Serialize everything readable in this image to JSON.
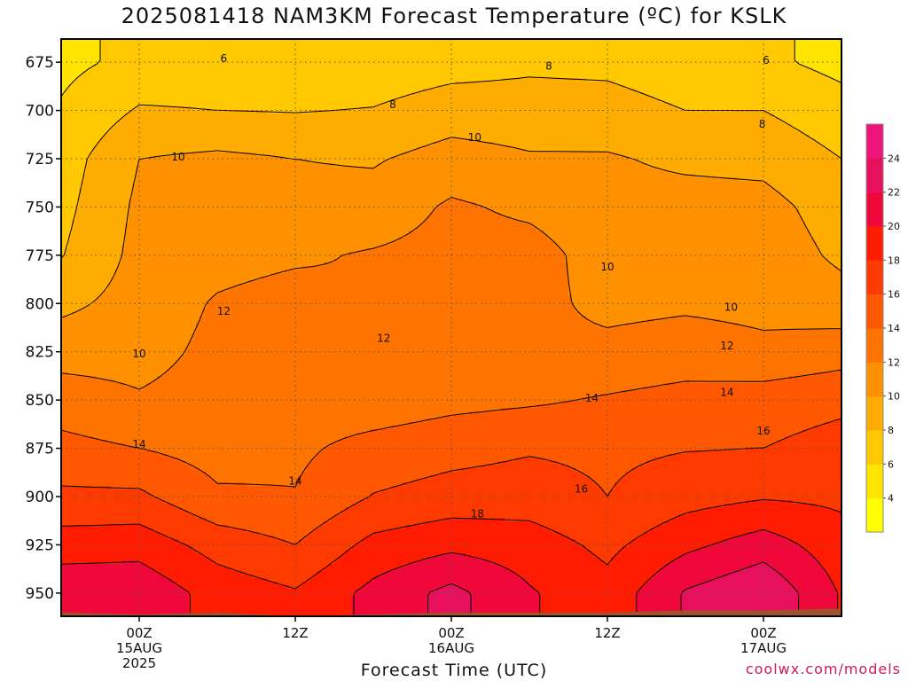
{
  "chart_data": {
    "type": "heatmap",
    "title": "2025081418 NAM3KM Forecast Temperature (ºC) for KSLK",
    "xlabel": "Forecast Time (UTC)",
    "ylabel": "",
    "y_scale": "pressure (inverted)",
    "ylim": [
      962,
      663
    ],
    "y_ticks": [
      675,
      700,
      725,
      750,
      775,
      800,
      825,
      850,
      875,
      900,
      925,
      950
    ],
    "x_ticks": [
      {
        "hour": 6,
        "label": "00Z",
        "sub": "15AUG",
        "year": "2025"
      },
      {
        "hour": 18,
        "label": "12Z",
        "sub": "",
        "year": ""
      },
      {
        "hour": 30,
        "label": "00Z",
        "sub": "16AUG",
        "year": ""
      },
      {
        "hour": 42,
        "label": "12Z",
        "sub": "",
        "year": ""
      },
      {
        "hour": 54,
        "label": "00Z",
        "sub": "17AUG",
        "year": ""
      }
    ],
    "xlim": [
      0,
      60
    ],
    "grid": true,
    "colorbar": {
      "levels": [
        2,
        4,
        6,
        8,
        10,
        12,
        14,
        16,
        18,
        20,
        22,
        24,
        26
      ],
      "labels": [
        4,
        6,
        8,
        10,
        12,
        14,
        16,
        18,
        20,
        22,
        24
      ],
      "colors": [
        "#ffff00",
        "#ffe400",
        "#ffc800",
        "#ffac00",
        "#ff9000",
        "#ff7400",
        "#ff5800",
        "#ff3a00",
        "#ff1c00",
        "#f0083a",
        "#e8105c",
        "#f0147a"
      ]
    },
    "x": [
      0,
      6,
      12,
      18,
      24,
      30,
      36,
      42,
      48,
      54,
      60
    ],
    "p": [
      675,
      700,
      725,
      750,
      775,
      800,
      825,
      850,
      875,
      900,
      925,
      950
    ],
    "values": [
      [
        5.5,
        6.5,
        6.8,
        6.6,
        6.7,
        7.2,
        7.6,
        7.5,
        6.8,
        6.4,
        5.4
      ],
      [
        6.2,
        8.2,
        8.0,
        7.9,
        8.1,
        9.0,
        8.9,
        8.8,
        8.0,
        8.0,
        6.8
      ],
      [
        7.0,
        10.0,
        10.4,
        10.0,
        9.8,
        10.8,
        10.2,
        10.2,
        9.6,
        9.4,
        8.0
      ],
      [
        7.4,
        10.4,
        10.9,
        10.6,
        10.8,
        12.3,
        11.6,
        10.7,
        10.8,
        10.7,
        9.0
      ],
      [
        7.9,
        10.6,
        11.3,
        11.7,
        12.2,
        12.7,
        12.8,
        11.1,
        11.3,
        11.2,
        9.6
      ],
      [
        9.5,
        10.8,
        12.2,
        12.8,
        12.0,
        13.0,
        12.6,
        11.5,
        11.7,
        11.5,
        10.8
      ],
      [
        11.2,
        11.3,
        12.5,
        12.9,
        12.2,
        12.6,
        12.3,
        12.5,
        12.9,
        12.4,
        13.1
      ],
      [
        13.0,
        12.2,
        12.8,
        13.0,
        12.8,
        13.4,
        13.7,
        14.2,
        14.7,
        15.0,
        15.5
      ],
      [
        14.6,
        14.0,
        13.2,
        13.6,
        14.7,
        15.3,
        15.8,
        15.6,
        15.9,
        16.0,
        16.8
      ],
      [
        16.4,
        16.4,
        14.3,
        14.1,
        16.1,
        16.8,
        17.0,
        16.0,
        17.2,
        17.8,
        17.6
      ],
      [
        19.0,
        19.2,
        17.2,
        16.0,
        18.6,
        19.5,
        19.0,
        17.5,
        19.5,
        21.0,
        18.8
      ],
      [
        21.5,
        21.5,
        19.2,
        18.2,
        20.6,
        22.6,
        20.2,
        18.7,
        22.2,
        23.8,
        19.8
      ]
    ],
    "surface_color": "#a0522d",
    "surface_pressure": [
      960,
      961,
      960,
      962,
      961,
      960,
      960,
      960,
      959,
      959,
      958
    ],
    "contour_labels": [
      {
        "value": "6",
        "hour": 12.5,
        "pressure": 673
      },
      {
        "value": "8",
        "hour": 37.5,
        "pressure": 677
      },
      {
        "value": "6",
        "hour": 54.2,
        "pressure": 674
      },
      {
        "value": "8",
        "hour": 25.5,
        "pressure": 697
      },
      {
        "value": "8",
        "hour": 53.9,
        "pressure": 707
      },
      {
        "value": "10",
        "hour": 9.0,
        "pressure": 724
      },
      {
        "value": "10",
        "hour": 31.8,
        "pressure": 714
      },
      {
        "value": "10",
        "hour": 42.0,
        "pressure": 781
      },
      {
        "value": "10",
        "hour": 51.5,
        "pressure": 802
      },
      {
        "value": "12",
        "hour": 12.5,
        "pressure": 804
      },
      {
        "value": "12",
        "hour": 24.8,
        "pressure": 818
      },
      {
        "value": "12",
        "hour": 51.2,
        "pressure": 822
      },
      {
        "value": "10",
        "hour": 6.0,
        "pressure": 826
      },
      {
        "value": "14",
        "hour": 40.8,
        "pressure": 849
      },
      {
        "value": "14",
        "hour": 51.2,
        "pressure": 846
      },
      {
        "value": "16",
        "hour": 54.0,
        "pressure": 866
      },
      {
        "value": "14",
        "hour": 6.0,
        "pressure": 873
      },
      {
        "value": "14",
        "hour": 18.0,
        "pressure": 892
      },
      {
        "value": "16",
        "hour": 40.0,
        "pressure": 896
      },
      {
        "value": "18",
        "hour": 32.0,
        "pressure": 909
      }
    ]
  },
  "credit": "coolwx.com/models"
}
